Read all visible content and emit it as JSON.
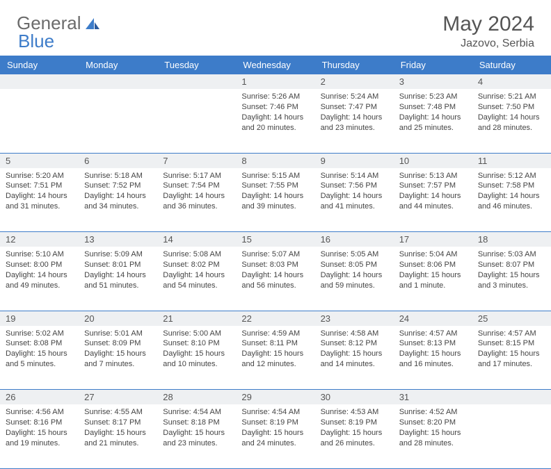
{
  "brand": {
    "part1": "General",
    "part2": "Blue"
  },
  "title": "May 2024",
  "location": "Jazovo, Serbia",
  "colors": {
    "header_bg": "#3d7cc9",
    "header_text": "#ffffff",
    "daynum_bg": "#eef0f2",
    "text": "#444444",
    "title_text": "#555555",
    "border": "#3d7cc9",
    "logo_gray": "#6b6b6b",
    "logo_blue": "#3d7cc9"
  },
  "weekdays": [
    "Sunday",
    "Monday",
    "Tuesday",
    "Wednesday",
    "Thursday",
    "Friday",
    "Saturday"
  ],
  "weeks": [
    {
      "nums": [
        "",
        "",
        "",
        "1",
        "2",
        "3",
        "4"
      ],
      "cells": [
        null,
        null,
        null,
        {
          "sunrise": "5:26 AM",
          "sunset": "7:46 PM",
          "daylight": "14 hours and 20 minutes."
        },
        {
          "sunrise": "5:24 AM",
          "sunset": "7:47 PM",
          "daylight": "14 hours and 23 minutes."
        },
        {
          "sunrise": "5:23 AM",
          "sunset": "7:48 PM",
          "daylight": "14 hours and 25 minutes."
        },
        {
          "sunrise": "5:21 AM",
          "sunset": "7:50 PM",
          "daylight": "14 hours and 28 minutes."
        }
      ]
    },
    {
      "nums": [
        "5",
        "6",
        "7",
        "8",
        "9",
        "10",
        "11"
      ],
      "cells": [
        {
          "sunrise": "5:20 AM",
          "sunset": "7:51 PM",
          "daylight": "14 hours and 31 minutes."
        },
        {
          "sunrise": "5:18 AM",
          "sunset": "7:52 PM",
          "daylight": "14 hours and 34 minutes."
        },
        {
          "sunrise": "5:17 AM",
          "sunset": "7:54 PM",
          "daylight": "14 hours and 36 minutes."
        },
        {
          "sunrise": "5:15 AM",
          "sunset": "7:55 PM",
          "daylight": "14 hours and 39 minutes."
        },
        {
          "sunrise": "5:14 AM",
          "sunset": "7:56 PM",
          "daylight": "14 hours and 41 minutes."
        },
        {
          "sunrise": "5:13 AM",
          "sunset": "7:57 PM",
          "daylight": "14 hours and 44 minutes."
        },
        {
          "sunrise": "5:12 AM",
          "sunset": "7:58 PM",
          "daylight": "14 hours and 46 minutes."
        }
      ]
    },
    {
      "nums": [
        "12",
        "13",
        "14",
        "15",
        "16",
        "17",
        "18"
      ],
      "cells": [
        {
          "sunrise": "5:10 AM",
          "sunset": "8:00 PM",
          "daylight": "14 hours and 49 minutes."
        },
        {
          "sunrise": "5:09 AM",
          "sunset": "8:01 PM",
          "daylight": "14 hours and 51 minutes."
        },
        {
          "sunrise": "5:08 AM",
          "sunset": "8:02 PM",
          "daylight": "14 hours and 54 minutes."
        },
        {
          "sunrise": "5:07 AM",
          "sunset": "8:03 PM",
          "daylight": "14 hours and 56 minutes."
        },
        {
          "sunrise": "5:05 AM",
          "sunset": "8:05 PM",
          "daylight": "14 hours and 59 minutes."
        },
        {
          "sunrise": "5:04 AM",
          "sunset": "8:06 PM",
          "daylight": "15 hours and 1 minute."
        },
        {
          "sunrise": "5:03 AM",
          "sunset": "8:07 PM",
          "daylight": "15 hours and 3 minutes."
        }
      ]
    },
    {
      "nums": [
        "19",
        "20",
        "21",
        "22",
        "23",
        "24",
        "25"
      ],
      "cells": [
        {
          "sunrise": "5:02 AM",
          "sunset": "8:08 PM",
          "daylight": "15 hours and 5 minutes."
        },
        {
          "sunrise": "5:01 AM",
          "sunset": "8:09 PM",
          "daylight": "15 hours and 7 minutes."
        },
        {
          "sunrise": "5:00 AM",
          "sunset": "8:10 PM",
          "daylight": "15 hours and 10 minutes."
        },
        {
          "sunrise": "4:59 AM",
          "sunset": "8:11 PM",
          "daylight": "15 hours and 12 minutes."
        },
        {
          "sunrise": "4:58 AM",
          "sunset": "8:12 PM",
          "daylight": "15 hours and 14 minutes."
        },
        {
          "sunrise": "4:57 AM",
          "sunset": "8:13 PM",
          "daylight": "15 hours and 16 minutes."
        },
        {
          "sunrise": "4:57 AM",
          "sunset": "8:15 PM",
          "daylight": "15 hours and 17 minutes."
        }
      ]
    },
    {
      "nums": [
        "26",
        "27",
        "28",
        "29",
        "30",
        "31",
        ""
      ],
      "cells": [
        {
          "sunrise": "4:56 AM",
          "sunset": "8:16 PM",
          "daylight": "15 hours and 19 minutes."
        },
        {
          "sunrise": "4:55 AM",
          "sunset": "8:17 PM",
          "daylight": "15 hours and 21 minutes."
        },
        {
          "sunrise": "4:54 AM",
          "sunset": "8:18 PM",
          "daylight": "15 hours and 23 minutes."
        },
        {
          "sunrise": "4:54 AM",
          "sunset": "8:19 PM",
          "daylight": "15 hours and 24 minutes."
        },
        {
          "sunrise": "4:53 AM",
          "sunset": "8:19 PM",
          "daylight": "15 hours and 26 minutes."
        },
        {
          "sunrise": "4:52 AM",
          "sunset": "8:20 PM",
          "daylight": "15 hours and 28 minutes."
        },
        null
      ]
    }
  ],
  "labels": {
    "sunrise": "Sunrise:",
    "sunset": "Sunset:",
    "daylight": "Daylight:"
  }
}
